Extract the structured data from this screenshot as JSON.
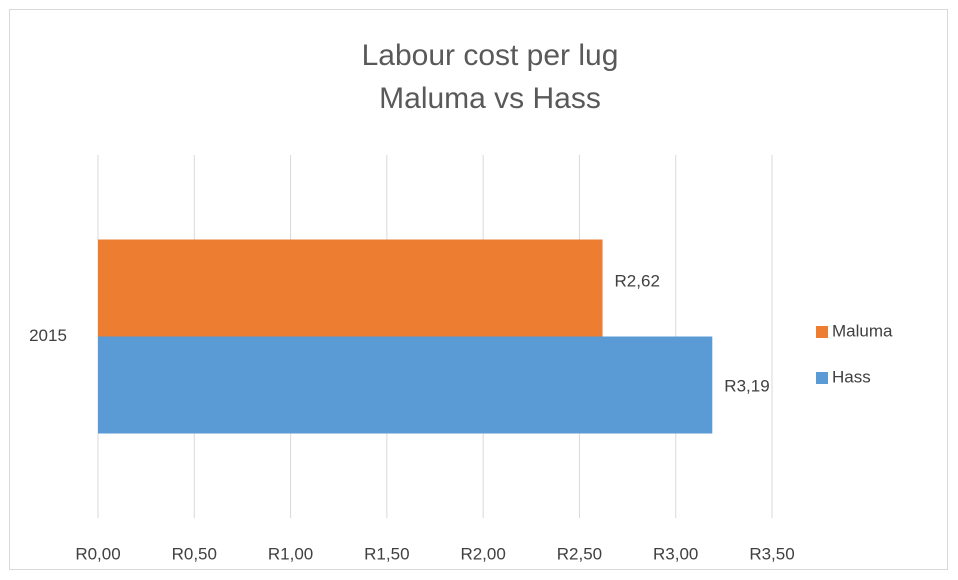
{
  "chart_data": {
    "type": "bar",
    "orientation": "horizontal",
    "title": "Labour cost per lug",
    "subtitle": "Maluma vs Hass",
    "categories": [
      "2015"
    ],
    "series": [
      {
        "name": "Maluma",
        "color": "#ed7d31",
        "values": [
          2.62
        ],
        "value_labels": [
          "R2,62"
        ]
      },
      {
        "name": "Hass",
        "color": "#5b9bd5",
        "values": [
          3.19
        ],
        "value_labels": [
          "R3,19"
        ]
      }
    ],
    "xlim": [
      0,
      3.5
    ],
    "xticks": [
      {
        "value": 0,
        "label": "R0,00"
      },
      {
        "value": 0.5,
        "label": "R0,50"
      },
      {
        "value": 1,
        "label": "R1,00"
      },
      {
        "value": 1.5,
        "label": "R1,50"
      },
      {
        "value": 2,
        "label": "R2,00"
      },
      {
        "value": 2.5,
        "label": "R2,50"
      },
      {
        "value": 3,
        "label": "R3,00"
      },
      {
        "value": 3.5,
        "label": "R3,50"
      }
    ],
    "grid": true,
    "legend": "right"
  }
}
